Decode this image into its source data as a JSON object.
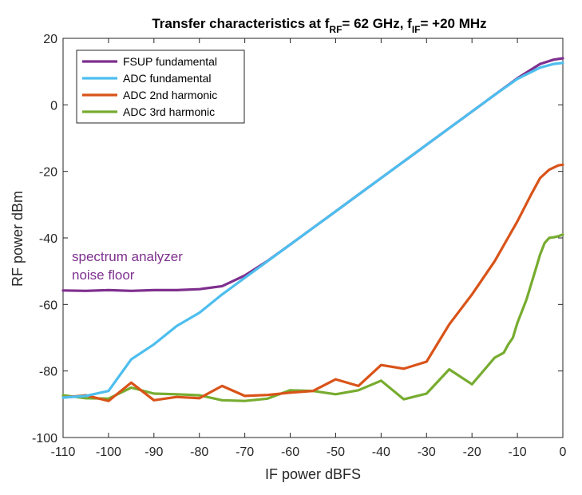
{
  "chart_data": {
    "type": "line",
    "title": {
      "prefix": "Transfer characteristics at f",
      "sub1": "RF",
      "mid": "= 62 GHz, f",
      "sub2": "IF",
      "suffix": "= +20 MHz"
    },
    "xlabel": "IF power dBFS",
    "ylabel": "RF power dBm",
    "xlim": [
      -110,
      0
    ],
    "ylim": [
      -100,
      20
    ],
    "xticks": [
      -110,
      -100,
      -90,
      -80,
      -70,
      -60,
      -50,
      -40,
      -30,
      -20,
      -10,
      0
    ],
    "yticks": [
      -100,
      -80,
      -60,
      -40,
      -20,
      0,
      20
    ],
    "grid": false,
    "legend_position": "top-left",
    "annotation": {
      "lines": [
        "spectrum analyzer",
        "noise floor"
      ],
      "color": "#7e2f8e"
    },
    "series": [
      {
        "name": "FSUP fundamental",
        "color": "#7e2f8e",
        "x": [
          -110,
          -105,
          -100,
          -95,
          -90,
          -85,
          -80,
          -75,
          -70,
          -65,
          -60,
          -55,
          -50,
          -45,
          -40,
          -35,
          -30,
          -25,
          -20,
          -15,
          -10,
          -5,
          -2,
          0
        ],
        "y": [
          -55.8,
          -55.9,
          -55.7,
          -55.9,
          -55.7,
          -55.7,
          -55.4,
          -54.5,
          -51.3,
          -46.9,
          -42,
          -37,
          -32,
          -27,
          -22,
          -17,
          -12,
          -7,
          -2,
          3,
          8,
          12.3,
          13.6,
          14
        ]
      },
      {
        "name": "ADC fundamental",
        "color": "#4dbeee",
        "x": [
          -110,
          -105,
          -100,
          -95,
          -90,
          -85,
          -80,
          -75,
          -70,
          -65,
          -60,
          -55,
          -50,
          -45,
          -40,
          -35,
          -30,
          -25,
          -20,
          -15,
          -10,
          -5,
          -2,
          0
        ],
        "y": [
          -88,
          -87.5,
          -86,
          -76.5,
          -72,
          -66.5,
          -62.5,
          -57,
          -52,
          -47,
          -42,
          -37,
          -32,
          -27,
          -22,
          -17,
          -12,
          -7,
          -2,
          3,
          7.8,
          11.2,
          12.3,
          12.6
        ]
      },
      {
        "name": "ADC 2nd harmonic",
        "color": "#d95319",
        "x": [
          -110,
          -105,
          -100,
          -95,
          -90,
          -85,
          -80,
          -75,
          -70,
          -65,
          -60,
          -55,
          -50,
          -45,
          -40,
          -35,
          -30,
          -25,
          -20,
          -15,
          -10,
          -7,
          -5,
          -3,
          -1,
          0
        ],
        "y": [
          -88,
          -87.3,
          -89,
          -83.5,
          -88.8,
          -87.8,
          -88.2,
          -84.5,
          -87.5,
          -87.2,
          -86.5,
          -86,
          -82.5,
          -84.5,
          -78.2,
          -79.3,
          -77.2,
          -66,
          -57,
          -47,
          -35,
          -27,
          -22,
          -19.5,
          -18.2,
          -18
        ]
      },
      {
        "name": "ADC 3rd harmonic",
        "color": "#77ac30",
        "x": [
          -110,
          -105,
          -100,
          -95,
          -90,
          -85,
          -80,
          -75,
          -70,
          -65,
          -60,
          -55,
          -50,
          -45,
          -40,
          -35,
          -30,
          -25,
          -20,
          -15,
          -13,
          -12,
          -11,
          -10,
          -9,
          -8,
          -7,
          -6,
          -5,
          -4,
          -3,
          -2,
          -1,
          0
        ],
        "y": [
          -87.3,
          -88.2,
          -88.3,
          -85,
          -86.8,
          -87,
          -87.3,
          -88.8,
          -89,
          -88.3,
          -85.8,
          -86,
          -87,
          -85.8,
          -82.9,
          -88.5,
          -86.8,
          -79.5,
          -84,
          -76,
          -74.5,
          -72,
          -70,
          -65.5,
          -62,
          -58.5,
          -54,
          -49.5,
          -45,
          -41.5,
          -40,
          -39.8,
          -39.5,
          -39
        ]
      }
    ]
  }
}
